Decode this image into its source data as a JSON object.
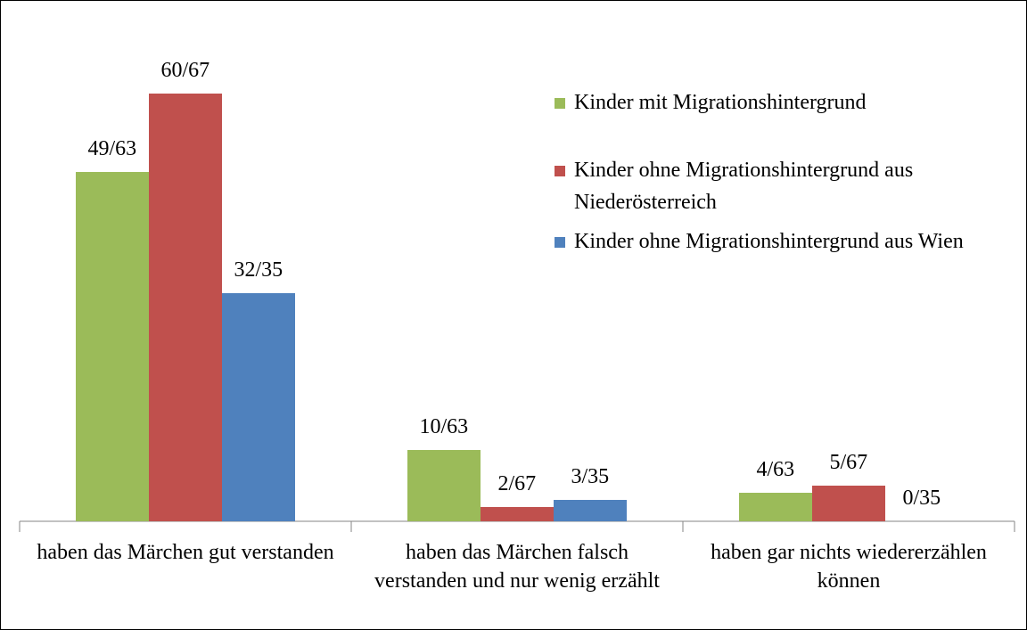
{
  "chart_data": {
    "type": "bar",
    "categories": [
      "haben das Märchen gut verstanden",
      "haben das Märchen falsch verstanden und nur wenig erzählt",
      "haben gar nichts wiedererzählen können"
    ],
    "series": [
      {
        "name": "Kinder mit Migrationshintergrund",
        "color": "#9bbb59",
        "values": [
          49,
          10,
          4
        ],
        "value_labels": [
          "49/63",
          "10/63",
          "4/63"
        ]
      },
      {
        "name": "Kinder ohne Migrationshintergrund aus Niederösterreich",
        "color": "#c0504d",
        "values": [
          60,
          2,
          5
        ],
        "value_labels": [
          "60/67",
          "2/67",
          "5/67"
        ]
      },
      {
        "name": "Kinder ohne Migrationshintergrund aus Wien",
        "color": "#4f81bd",
        "values": [
          32,
          3,
          0
        ],
        "value_labels": [
          "32/35",
          "3/35",
          "0/35"
        ]
      }
    ],
    "legend": "right"
  }
}
